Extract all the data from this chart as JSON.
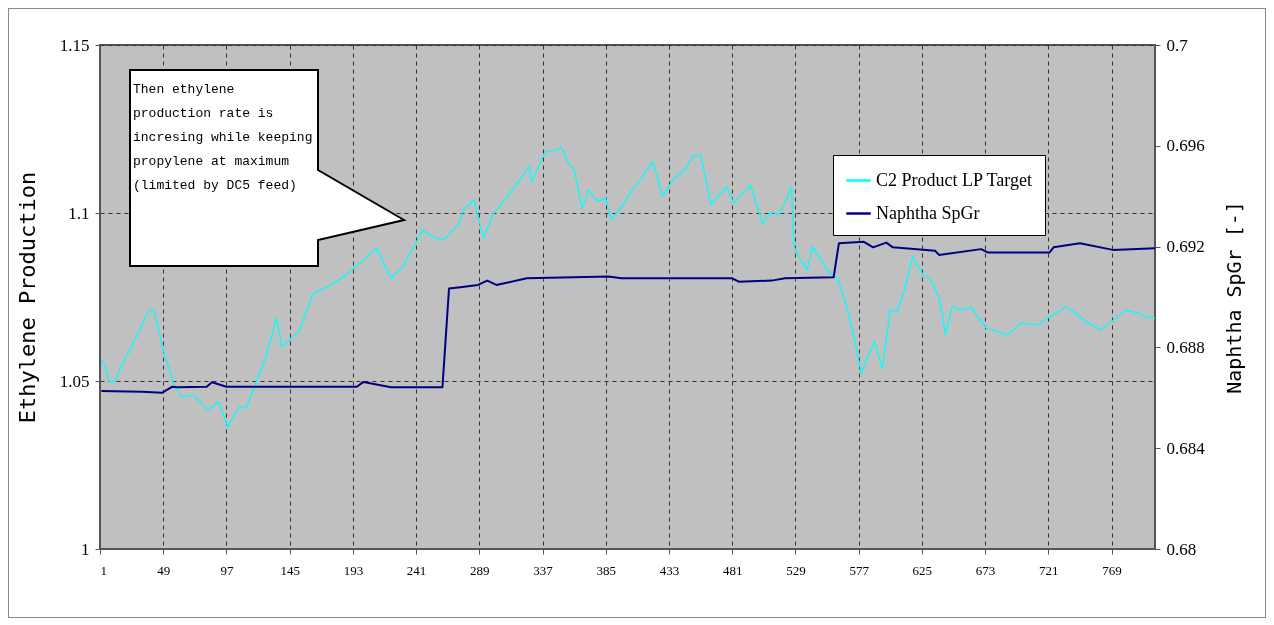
{
  "chart_data": {
    "type": "line",
    "ylabel": "Ethylene Production",
    "y2label": "Naphtha SpGr [-]",
    "xlim": [
      1,
      802
    ],
    "xticks": [
      1,
      49,
      97,
      145,
      193,
      241,
      289,
      337,
      385,
      433,
      481,
      529,
      577,
      625,
      673,
      721,
      769
    ],
    "ylim": [
      1,
      1.15
    ],
    "yticks": [
      1,
      1.05,
      1.1,
      1.15
    ],
    "y2lim": [
      0.68,
      0.7
    ],
    "y2ticks": [
      0.68,
      0.684,
      0.688,
      0.692,
      0.696,
      0.7
    ],
    "grid": true,
    "legend": "top right",
    "annotations": [
      "Then ethylene production rate is incresing while keeping propylene at maximum (limited by DC5 feed)"
    ],
    "series": [
      {
        "name": "C2 Product LP Target",
        "color": "#00ffff",
        "x": [
          2,
          4,
          8,
          12,
          16,
          30,
          38,
          42,
          49,
          57,
          63,
          72,
          83,
          91,
          98,
          107,
          112,
          127,
          135,
          139,
          152,
          163,
          174,
          186,
          201,
          211,
          222,
          231,
          246,
          256,
          262,
          273,
          277,
          285,
          292,
          300,
          312,
          327,
          329,
          339,
          348,
          351,
          356,
          361,
          367,
          372,
          379,
          385,
          389,
          399,
          405,
          411,
          418,
          421,
          428,
          436,
          446,
          451,
          457,
          465,
          471,
          477,
          482,
          495,
          504,
          511,
          516,
          521,
          526,
          528,
          533,
          538,
          542,
          553,
          561,
          568,
          574,
          579,
          583,
          589,
          595,
          601,
          606,
          611,
          618,
          626,
          631,
          638,
          643,
          648,
          656,
          662,
          674,
          690,
          700,
          713,
          722,
          735,
          750,
          761,
          772,
          780,
          790,
          795,
          802
        ],
        "values": [
          1.0563,
          1.0553,
          1.0498,
          1.0498,
          1.0533,
          1.0642,
          1.0711,
          1.0711,
          1.0592,
          1.0493,
          1.0453,
          1.0458,
          1.0414,
          1.0438,
          1.0364,
          1.0424,
          1.0419,
          1.0572,
          1.0687,
          1.0602,
          1.0647,
          1.0761,
          1.0781,
          1.081,
          1.086,
          1.0895,
          1.0806,
          1.084,
          1.0949,
          1.0925,
          1.092,
          1.0964,
          1.1009,
          1.1039,
          1.0925,
          1.0999,
          1.1058,
          1.1138,
          1.1093,
          1.1182,
          1.1187,
          1.1197,
          1.1153,
          1.1128,
          1.1014,
          1.1068,
          1.1034,
          1.1044,
          1.0979,
          1.1029,
          1.1068,
          1.1098,
          1.1138,
          1.1153,
          1.1049,
          1.1098,
          1.1133,
          1.1168,
          1.1173,
          1.1024,
          1.1054,
          1.1078,
          1.1029,
          1.1083,
          1.0969,
          1.1004,
          1.0994,
          1.1029,
          1.1078,
          1.09,
          1.086,
          1.083,
          1.09,
          1.083,
          1.0806,
          1.0721,
          1.0622,
          1.0523,
          1.0563,
          1.0617,
          1.0538,
          1.0711,
          1.0706,
          1.0761,
          1.087,
          1.0815,
          1.0806,
          1.0751,
          1.0637,
          1.0721,
          1.0711,
          1.0721,
          1.0657,
          1.0637,
          1.0672,
          1.0667,
          1.0691,
          1.0721,
          1.0676,
          1.0652,
          1.0687,
          1.0711,
          1.0701,
          1.0691,
          1.0687
        ]
      },
      {
        "name": "Naphtha SpGr",
        "color": "#000080",
        "axis": "y2",
        "x": [
          2,
          33,
          48,
          56,
          60,
          82,
          86,
          97,
          196,
          201,
          222,
          261,
          266,
          273,
          288,
          295,
          302,
          325,
          387,
          397,
          481,
          486,
          511,
          521,
          558,
          562,
          581,
          588,
          598,
          603,
          635,
          638,
          670,
          675,
          722,
          725,
          745,
          770,
          802
        ],
        "values": [
          0.68627,
          0.68624,
          0.6862,
          0.68644,
          0.68642,
          0.68644,
          0.68662,
          0.68644,
          0.68644,
          0.68663,
          0.68642,
          0.68642,
          0.69034,
          0.69038,
          0.69048,
          0.69065,
          0.69048,
          0.69074,
          0.69081,
          0.69074,
          0.69074,
          0.69061,
          0.69065,
          0.69074,
          0.69078,
          0.69213,
          0.69219,
          0.69197,
          0.69216,
          0.69197,
          0.69184,
          0.69167,
          0.6919,
          0.69177,
          0.69177,
          0.69197,
          0.69213,
          0.69187,
          0.69193
        ]
      }
    ]
  }
}
